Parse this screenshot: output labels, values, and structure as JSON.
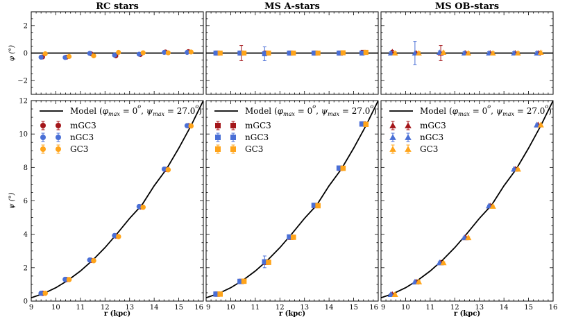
{
  "chart_data": {
    "type": "scatter",
    "figure_xlabel": "r (kpc)",
    "top_ylabel": "φ (°)",
    "bottom_ylabel": "ψ (°)",
    "xlim": [
      9,
      16
    ],
    "top_ylim": [
      -3,
      3
    ],
    "bottom_ylim": [
      0,
      12
    ],
    "x_ticks": [
      "9",
      "10",
      "11",
      "12",
      "13",
      "14",
      "15",
      "16"
    ],
    "top_y_ticks": [
      "−2",
      "0",
      "2"
    ],
    "bottom_y_ticks": [
      "0",
      "2",
      "4",
      "6",
      "8",
      "10",
      "12"
    ],
    "top_y_tick_values": [
      -2,
      0,
      2
    ],
    "bottom_y_tick_values": [
      0,
      2,
      4,
      6,
      8,
      10,
      12
    ],
    "model": {
      "label": "Model (φmax = 0°, ψmax = 27.0°)",
      "label_parts": [
        "Model (",
        "φ",
        "max",
        " = 0",
        "o",
        ", ",
        "ψ",
        "max",
        " = 27.0",
        "o",
        ")"
      ],
      "phi_value": 0,
      "psi_curve": {
        "r": [
          9.0,
          9.5,
          10.0,
          10.5,
          11.0,
          11.5,
          12.0,
          12.5,
          13.0,
          13.5,
          14.0,
          14.5,
          15.0,
          15.5,
          16.0
        ],
        "psi": [
          0.2,
          0.45,
          0.8,
          1.25,
          1.8,
          2.45,
          3.2,
          4.05,
          4.95,
          5.75,
          6.9,
          7.9,
          9.15,
          10.5,
          12.0
        ]
      }
    },
    "legend_labels": [
      "mGC3",
      "nGC3",
      "GC3"
    ],
    "colors": {
      "mGC3": "#a4161a",
      "nGC3": "#4a6fd6",
      "GC3": "#ffa41a",
      "model": "#000000"
    },
    "panels": [
      {
        "title": "RC stars",
        "marker": "circle",
        "series": [
          {
            "name": "mGC3",
            "r": [
              9.46,
              10.43,
              11.43,
              12.44,
              13.44,
              14.46,
              15.39
            ],
            "psi": [
              0.47,
              1.29,
              2.44,
              3.9,
              5.64,
              7.88,
              10.5
            ],
            "psi_err": [
              0.05,
              0.05,
              0.05,
              0.05,
              0.05,
              0.05,
              0.05
            ],
            "phi": [
              -0.28,
              -0.3,
              -0.05,
              -0.2,
              -0.1,
              0.08,
              0.1
            ],
            "phi_err": [
              0.05,
              0.05,
              0.05,
              0.05,
              0.05,
              0.05,
              0.05
            ]
          },
          {
            "name": "nGC3",
            "r": [
              9.4,
              10.38,
              11.38,
              12.39,
              13.39,
              14.41,
              15.34
            ],
            "psi": [
              0.47,
              1.3,
              2.46,
              3.92,
              5.66,
              7.9,
              10.5
            ],
            "psi_err": [
              0.05,
              0.05,
              0.05,
              0.05,
              0.05,
              0.05,
              0.05
            ],
            "phi": [
              -0.3,
              -0.32,
              -0.02,
              -0.15,
              -0.08,
              0.05,
              0.05
            ],
            "phi_err": [
              0.05,
              0.05,
              0.05,
              0.05,
              0.05,
              0.05,
              0.05
            ]
          },
          {
            "name": "GC3",
            "r": [
              9.57,
              10.54,
              11.54,
              12.55,
              13.55,
              14.57,
              15.5
            ],
            "psi": [
              0.47,
              1.29,
              2.42,
              3.86,
              5.62,
              7.86,
              10.48
            ],
            "psi_err": [
              0.05,
              0.05,
              0.05,
              0.05,
              0.05,
              0.05,
              0.05
            ],
            "phi": [
              -0.05,
              -0.25,
              -0.2,
              0.05,
              0.02,
              0.02,
              0.08
            ],
            "phi_err": [
              0.05,
              0.05,
              0.05,
              0.05,
              0.05,
              0.05,
              0.05
            ]
          }
        ]
      },
      {
        "title": "MS A-stars",
        "marker": "square",
        "series": [
          {
            "name": "mGC3",
            "r": [
              9.46,
              10.43,
              11.43,
              12.44,
              13.44,
              14.46,
              15.39
            ],
            "psi": [
              0.42,
              1.18,
              2.32,
              3.82,
              5.72,
              7.95,
              10.6
            ],
            "psi_err": [
              0.05,
              0.05,
              0.05,
              0.05,
              0.05,
              0.05,
              0.05
            ],
            "phi": [
              0.0,
              0.0,
              0.0,
              0.0,
              0.0,
              0.0,
              0.05
            ],
            "phi_err": [
              0.1,
              0.55,
              0.1,
              0.1,
              0.1,
              0.1,
              0.1
            ]
          },
          {
            "name": "nGC3",
            "r": [
              9.4,
              10.38,
              11.38,
              12.39,
              13.39,
              14.41,
              15.34
            ],
            "psi": [
              0.42,
              1.18,
              2.35,
              3.84,
              5.73,
              7.96,
              10.6
            ],
            "psi_err": [
              0.05,
              0.05,
              0.35,
              0.05,
              0.05,
              0.05,
              0.05
            ],
            "phi": [
              0.0,
              0.0,
              -0.05,
              0.0,
              0.0,
              0.0,
              0.0
            ],
            "phi_err": [
              0.1,
              0.1,
              0.5,
              0.1,
              0.1,
              0.1,
              0.1
            ]
          },
          {
            "name": "GC3",
            "r": [
              9.57,
              10.54,
              11.54,
              12.55,
              13.55,
              14.57,
              15.5
            ],
            "psi": [
              0.42,
              1.19,
              2.32,
              3.82,
              5.71,
              7.95,
              10.58
            ],
            "psi_err": [
              0.05,
              0.05,
              0.05,
              0.05,
              0.05,
              0.05,
              0.05
            ],
            "phi": [
              0.0,
              0.0,
              0.0,
              0.0,
              0.0,
              0.02,
              0.05
            ],
            "phi_err": [
              0.1,
              0.1,
              0.1,
              0.1,
              0.1,
              0.1,
              0.1
            ]
          }
        ]
      },
      {
        "title": "MS OB-stars",
        "marker": "triangle",
        "series": [
          {
            "name": "mGC3",
            "r": [
              9.46,
              10.43,
              11.43,
              12.44,
              13.44,
              14.46,
              15.39
            ],
            "psi": [
              0.4,
              1.15,
              2.3,
              3.8,
              5.7,
              7.9,
              10.55
            ],
            "psi_err": [
              0.05,
              0.05,
              0.05,
              0.05,
              0.05,
              0.05,
              0.05
            ],
            "phi": [
              0.1,
              0.0,
              0.0,
              0.0,
              0.0,
              0.0,
              0.0
            ],
            "phi_err": [
              0.1,
              0.1,
              0.55,
              0.1,
              0.1,
              0.1,
              0.1
            ]
          },
          {
            "name": "nGC3",
            "r": [
              9.4,
              10.38,
              11.38,
              12.39,
              13.39,
              14.41,
              15.34
            ],
            "psi": [
              0.4,
              1.15,
              2.3,
              3.8,
              5.7,
              7.9,
              10.55
            ],
            "psi_err": [
              0.05,
              0.05,
              0.05,
              0.05,
              0.05,
              0.05,
              0.05
            ],
            "phi": [
              0.0,
              0.0,
              0.05,
              0.0,
              0.0,
              0.0,
              0.0
            ],
            "phi_err": [
              0.1,
              0.85,
              0.1,
              0.1,
              0.1,
              0.1,
              0.1
            ]
          },
          {
            "name": "GC3",
            "r": [
              9.57,
              10.54,
              11.54,
              12.55,
              13.55,
              14.57,
              15.5
            ],
            "psi": [
              0.4,
              1.16,
              2.3,
              3.8,
              5.68,
              7.9,
              10.55
            ],
            "psi_err": [
              0.05,
              0.05,
              0.05,
              0.05,
              0.05,
              0.05,
              0.05
            ],
            "phi": [
              0.0,
              0.0,
              0.05,
              0.0,
              0.0,
              0.0,
              0.05
            ],
            "phi_err": [
              0.1,
              0.1,
              0.1,
              0.1,
              0.1,
              0.1,
              0.1
            ]
          }
        ]
      }
    ]
  }
}
